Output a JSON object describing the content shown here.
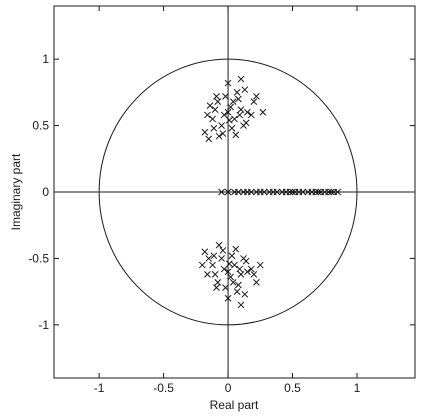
{
  "chart_data": {
    "type": "scatter",
    "title": "",
    "xlabel": "Real part",
    "ylabel": "Imaginary part",
    "xlim": [
      -1.35,
      1.45
    ],
    "ylim": [
      -1.4,
      1.4
    ],
    "x_ticks": [
      -1,
      -0.5,
      0,
      0.5,
      1
    ],
    "x_tick_labels": [
      "-1",
      "-0.5",
      "0",
      "0.5",
      "1"
    ],
    "y_ticks": [
      1,
      0.5,
      0,
      -0.5,
      -1
    ],
    "y_tick_labels": [
      "1",
      "0.5",
      "0",
      "-0.5",
      "-1"
    ],
    "grid": false,
    "legend": "none",
    "marker": "x",
    "reference_lines": [
      "x = 0",
      "y = 0",
      "unit circle"
    ],
    "series": [
      {
        "values": [
          [
            -0.18,
            0.45
          ],
          [
            -0.15,
            0.4
          ],
          [
            -0.12,
            0.55
          ],
          [
            -0.1,
            0.62
          ],
          [
            -0.08,
            0.68
          ],
          [
            -0.05,
            0.5
          ],
          [
            -0.03,
            0.58
          ],
          [
            0.0,
            0.6
          ],
          [
            0.02,
            0.64
          ],
          [
            0.05,
            0.55
          ],
          [
            0.08,
            0.7
          ],
          [
            0.1,
            0.62
          ],
          [
            0.12,
            0.5
          ],
          [
            0.15,
            0.6
          ],
          [
            0.2,
            0.68
          ],
          [
            -0.07,
            0.42
          ],
          [
            0.03,
            0.48
          ],
          [
            0.07,
            0.75
          ],
          [
            0.0,
            0.82
          ],
          [
            -0.14,
            0.65
          ],
          [
            0.1,
            0.85
          ],
          [
            0.18,
            0.58
          ],
          [
            0.22,
            0.72
          ],
          [
            0.27,
            0.6
          ],
          [
            -0.02,
            0.72
          ],
          [
            0.04,
            0.68
          ],
          [
            -0.11,
            0.48
          ],
          [
            0.06,
            0.43
          ],
          [
            0.13,
            0.77
          ],
          [
            -0.09,
            0.72
          ],
          [
            0.01,
            0.54
          ],
          [
            0.14,
            0.52
          ],
          [
            -0.04,
            0.44
          ],
          [
            -0.16,
            0.58
          ],
          [
            0.09,
            0.58
          ]
        ]
      },
      {
        "values": [
          [
            -0.18,
            -0.45
          ],
          [
            -0.15,
            -0.5
          ],
          [
            -0.12,
            -0.55
          ],
          [
            -0.1,
            -0.62
          ],
          [
            -0.08,
            -0.68
          ],
          [
            -0.05,
            -0.5
          ],
          [
            -0.03,
            -0.58
          ],
          [
            0.0,
            -0.6
          ],
          [
            0.02,
            -0.64
          ],
          [
            0.05,
            -0.55
          ],
          [
            0.08,
            -0.7
          ],
          [
            0.1,
            -0.62
          ],
          [
            0.12,
            -0.5
          ],
          [
            0.15,
            -0.6
          ],
          [
            0.2,
            -0.62
          ],
          [
            -0.07,
            -0.4
          ],
          [
            0.03,
            -0.48
          ],
          [
            0.07,
            -0.75
          ],
          [
            0.0,
            -0.8
          ],
          [
            -0.2,
            -0.55
          ],
          [
            0.1,
            -0.85
          ],
          [
            0.18,
            -0.58
          ],
          [
            0.22,
            -0.68
          ],
          [
            0.25,
            -0.55
          ],
          [
            -0.02,
            -0.72
          ],
          [
            0.04,
            -0.68
          ],
          [
            -0.11,
            -0.48
          ],
          [
            0.06,
            -0.43
          ],
          [
            0.13,
            -0.77
          ],
          [
            -0.09,
            -0.72
          ],
          [
            0.01,
            -0.54
          ],
          [
            0.14,
            -0.52
          ],
          [
            -0.04,
            -0.44
          ],
          [
            -0.16,
            -0.62
          ],
          [
            0.09,
            -0.58
          ]
        ]
      },
      {
        "values": [
          [
            -0.05,
            0
          ],
          [
            0.0,
            0
          ],
          [
            0.05,
            0
          ],
          [
            0.08,
            0
          ],
          [
            0.12,
            0
          ],
          [
            0.15,
            0
          ],
          [
            0.18,
            0
          ],
          [
            0.22,
            0
          ],
          [
            0.25,
            0
          ],
          [
            0.28,
            0
          ],
          [
            0.32,
            0
          ],
          [
            0.35,
            0
          ],
          [
            0.38,
            0
          ],
          [
            0.42,
            0
          ],
          [
            0.45,
            0
          ],
          [
            0.48,
            0
          ],
          [
            0.5,
            0
          ],
          [
            0.52,
            0
          ],
          [
            0.55,
            0
          ],
          [
            0.58,
            0
          ],
          [
            0.62,
            0
          ],
          [
            0.65,
            0
          ],
          [
            0.68,
            0
          ],
          [
            0.7,
            0
          ],
          [
            0.72,
            0
          ],
          [
            0.75,
            0
          ],
          [
            0.78,
            0
          ],
          [
            0.8,
            0
          ],
          [
            0.82,
            0
          ],
          [
            0.85,
            0
          ]
        ]
      }
    ]
  }
}
